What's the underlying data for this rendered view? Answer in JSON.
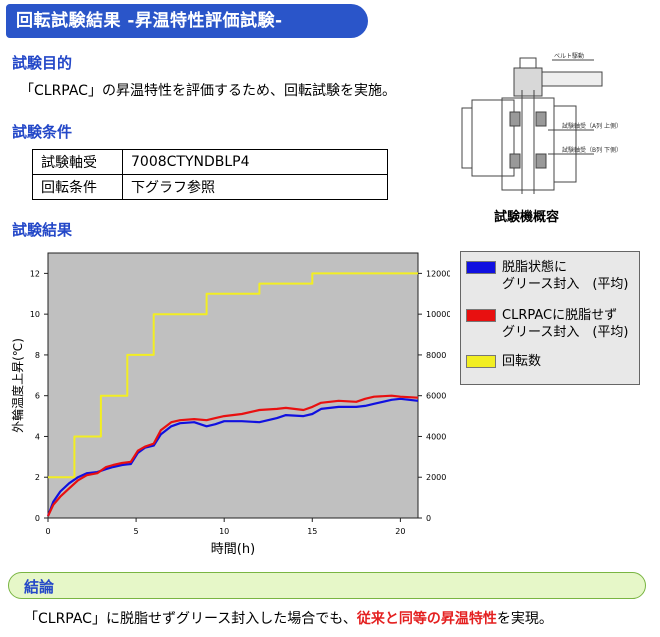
{
  "header": {
    "title": "回転試験結果 -昇温特性評価試験-"
  },
  "purpose": {
    "heading": "試験目的",
    "text": "「CLRPAC」の昇温特性を評価するため、回転試験を実施。"
  },
  "conditions": {
    "heading": "試験条件",
    "rows": [
      {
        "key": "試験軸受",
        "value": "7008CTYNDBLP4"
      },
      {
        "key": "回転条件",
        "value": "下グラフ参照"
      }
    ]
  },
  "figure": {
    "caption": "試験機概容",
    "labels": [
      "ベルト駆動",
      "試験軸受（A列 上側）",
      "試験軸受（B列 下側）"
    ]
  },
  "results": {
    "heading": "試験結果"
  },
  "legend": [
    {
      "label": "脱脂状態に\nグリース封入　(平均)",
      "color": "#1010e0"
    },
    {
      "label": "CLRPACに脱脂せず\nグリース封入　(平均)",
      "color": "#e81010"
    },
    {
      "label": "回転数",
      "color": "#f2ee22"
    }
  ],
  "chart_data": {
    "type": "line",
    "xlabel": "時間(h)",
    "ylabel": "外輪温度上昇(℃)",
    "xlim": [
      0,
      21
    ],
    "ylim": [
      0,
      13
    ],
    "y2lim": [
      0,
      13000
    ],
    "xticks": [
      0,
      5,
      10,
      15,
      20
    ],
    "yticks": [
      0,
      2,
      4,
      6,
      8,
      10,
      12
    ],
    "y2ticks": [
      0,
      2000,
      4000,
      6000,
      8000,
      10000,
      12000
    ],
    "grid": false,
    "series": [
      {
        "name": "脱脂状態にグリース封入　(平均)",
        "color": "#1010e0",
        "axis": "left",
        "x": [
          0,
          0.3,
          0.7,
          1.2,
          1.7,
          2.2,
          2.8,
          3.3,
          3.7,
          4.2,
          4.7,
          5.1,
          5.5,
          6.0,
          6.4,
          7.0,
          7.5,
          8.3,
          9.0,
          9.5,
          10.0,
          11.0,
          12.0,
          13.0,
          13.5,
          14.5,
          15.0,
          15.5,
          16.5,
          17.5,
          18.0,
          18.5,
          19.5,
          20.0,
          21.0
        ],
        "y": [
          0.1,
          0.8,
          1.3,
          1.7,
          2.0,
          2.2,
          2.25,
          2.4,
          2.5,
          2.6,
          2.65,
          3.2,
          3.45,
          3.55,
          4.1,
          4.5,
          4.65,
          4.7,
          4.5,
          4.6,
          4.75,
          4.75,
          4.7,
          4.9,
          5.05,
          5.0,
          5.1,
          5.35,
          5.45,
          5.45,
          5.5,
          5.6,
          5.8,
          5.85,
          5.75
        ]
      },
      {
        "name": "CLRPACに脱脂せずグリース封入　(平均)",
        "color": "#e81010",
        "axis": "left",
        "x": [
          0,
          0.3,
          0.7,
          1.2,
          1.7,
          2.2,
          2.8,
          3.3,
          3.7,
          4.2,
          4.7,
          5.1,
          5.5,
          6.0,
          6.4,
          7.0,
          7.5,
          8.3,
          9.0,
          9.5,
          10.0,
          11.0,
          12.0,
          13.0,
          13.5,
          14.5,
          15.0,
          15.5,
          16.5,
          17.5,
          18.0,
          18.5,
          19.5,
          20.0,
          21.0
        ],
        "y": [
          0.1,
          0.65,
          1.05,
          1.45,
          1.85,
          2.1,
          2.2,
          2.5,
          2.6,
          2.7,
          2.75,
          3.3,
          3.5,
          3.65,
          4.3,
          4.7,
          4.8,
          4.85,
          4.8,
          4.9,
          5.0,
          5.1,
          5.3,
          5.35,
          5.4,
          5.3,
          5.45,
          5.65,
          5.75,
          5.7,
          5.85,
          5.95,
          6.0,
          5.95,
          5.9
        ]
      },
      {
        "name": "回転数",
        "color": "#f2ee22",
        "axis": "right",
        "step": true,
        "x": [
          0,
          1.5,
          1.5,
          3.0,
          3.0,
          4.5,
          4.5,
          6.0,
          6.0,
          9.0,
          9.0,
          12.0,
          12.0,
          15.0,
          15.0,
          18.0,
          18.0,
          21.0
        ],
        "y": [
          2000,
          2000,
          4000,
          4000,
          6000,
          6000,
          8000,
          8000,
          10000,
          10000,
          11000,
          11000,
          11500,
          11500,
          12000,
          12000,
          12000,
          12000
        ]
      }
    ]
  },
  "conclusion": {
    "label": "結論",
    "text_before": "「CLRPAC」に脱脂せずグリース封入した場合でも、",
    "text_highlight": "従来と同等の昇温特性",
    "text_after": "を実現。"
  }
}
